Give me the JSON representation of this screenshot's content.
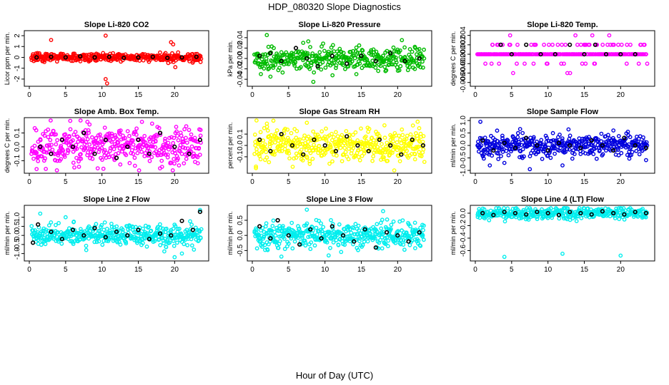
{
  "title": "HDP_080320  Slope Diagnostics",
  "xlabel": "Hour of Day (UTC)",
  "chart_data": [
    {
      "type": "scatter",
      "title": "Slope Li-820 CO2",
      "ylabel": "Licor ppm per min.",
      "color": "#ff0000",
      "xlim": [
        0,
        24
      ],
      "ylim": [
        -2.4,
        2.2
      ],
      "xticks": [
        0,
        5,
        10,
        15,
        20
      ],
      "yticks": [
        -2,
        -1,
        0,
        1,
        2
      ],
      "ytick_labels": [
        "-2",
        "-1",
        "0",
        "1",
        "2"
      ],
      "spread": 0.18,
      "n": 420,
      "outliers": [
        [
          3,
          1.6
        ],
        [
          10.5,
          2.0
        ],
        [
          10.5,
          -2.0
        ],
        [
          10.7,
          -2.4
        ],
        [
          19.5,
          1.4
        ],
        [
          19.8,
          1.2
        ],
        [
          20.1,
          -0.9
        ]
      ],
      "black": [
        [
          1,
          0.0
        ],
        [
          3,
          0.05
        ],
        [
          5,
          0.0
        ],
        [
          7,
          0.1
        ],
        [
          9,
          0.0
        ],
        [
          11,
          0.05
        ],
        [
          13,
          -0.05
        ],
        [
          15,
          0.0
        ],
        [
          17,
          0.05
        ],
        [
          19,
          -0.05
        ],
        [
          21,
          0.0
        ],
        [
          23,
          0.05
        ]
      ]
    },
    {
      "type": "scatter",
      "title": "Slope Li-820 Pressure",
      "ylabel": "kPa per min.",
      "color": "#00bb00",
      "xlim": [
        0,
        24
      ],
      "ylim": [
        -0.048,
        0.048
      ],
      "xticks": [
        0,
        5,
        10,
        15,
        20
      ],
      "yticks": [
        -0.04,
        -0.02,
        0,
        0.02,
        0.04
      ],
      "ytick_labels": [
        "-0.04",
        "-0.02",
        "0.00",
        "0.02",
        "0.04"
      ],
      "spread": 0.011,
      "n": 380,
      "outliers": [
        [
          2,
          0.045
        ],
        [
          2.5,
          -0.035
        ],
        [
          8.4,
          -0.045
        ],
        [
          7,
          0.03
        ]
      ],
      "black": [
        [
          1,
          0.005
        ],
        [
          2.5,
          0.01
        ],
        [
          4,
          -0.005
        ],
        [
          6,
          0.02
        ],
        [
          7.5,
          0.0
        ],
        [
          9,
          -0.015
        ],
        [
          11,
          0.005
        ],
        [
          13,
          -0.01
        ],
        [
          15,
          0.005
        ],
        [
          17,
          -0.005
        ],
        [
          19,
          0.01
        ],
        [
          21,
          -0.005
        ],
        [
          23,
          0.0
        ]
      ]
    },
    {
      "type": "scatter",
      "title": "Slope Li-820 Temp.",
      "ylabel": "degrees C per min.",
      "color": "#ff00ff",
      "xlim": [
        0,
        24
      ],
      "ylim": [
        -0.0062,
        0.0044
      ],
      "xticks": [
        0,
        5,
        10,
        15,
        20
      ],
      "yticks": [
        -0.006,
        -0.004,
        -0.002,
        0,
        0.002,
        0.004
      ],
      "ytick_labels": [
        "-0.006",
        "-0.004",
        "-0.002",
        "0.000",
        "0.002",
        "0.004"
      ],
      "levels": [
        0.004,
        0.002,
        0,
        -0.002,
        -0.004,
        -0.006
      ],
      "n": 300,
      "black": [
        [
          3.5,
          0.002
        ],
        [
          5,
          0.0
        ],
        [
          7,
          0.002
        ],
        [
          9,
          0.0
        ],
        [
          11,
          0.0
        ],
        [
          13,
          0.002
        ],
        [
          15,
          0.0
        ],
        [
          16.5,
          0.002
        ],
        [
          18,
          0.0
        ],
        [
          20,
          0.0
        ],
        [
          22,
          0.0
        ]
      ]
    },
    {
      "type": "scatter",
      "title": "Slope Amb. Box Temp.",
      "ylabel": "degrees C per min.",
      "color": "#ff00ff",
      "xlim": [
        0,
        24
      ],
      "ylim": [
        -0.17,
        0.19
      ],
      "xticks": [
        0,
        5,
        10,
        15,
        20
      ],
      "yticks": [
        -0.1,
        0,
        0.1
      ],
      "ytick_labels": [
        "-0.1",
        "0.0",
        "0.1"
      ],
      "spread": 0.065,
      "n": 420,
      "outliers": [
        [
          1,
          -0.16
        ],
        [
          8,
          0.18
        ],
        [
          15.5,
          0.18
        ]
      ],
      "black": [
        [
          1.5,
          0.0
        ],
        [
          3,
          -0.05
        ],
        [
          4.5,
          0.05
        ],
        [
          6,
          0.0
        ],
        [
          7.5,
          0.1
        ],
        [
          9,
          -0.05
        ],
        [
          10.5,
          0.05
        ],
        [
          12,
          -0.08
        ],
        [
          13.5,
          0.0
        ],
        [
          15,
          0.05
        ],
        [
          16.5,
          -0.05
        ],
        [
          18,
          0.1
        ],
        [
          20,
          0.0
        ],
        [
          22,
          -0.05
        ],
        [
          23.5,
          0.05
        ]
      ]
    },
    {
      "type": "scatter",
      "title": "Slope Gas Stream RH",
      "ylabel": "percent per min.",
      "color": "#ffff00",
      "xlim": [
        0,
        24
      ],
      "ylim": [
        -0.22,
        0.22
      ],
      "xticks": [
        0,
        5,
        10,
        15,
        20
      ],
      "yticks": [
        -0.1,
        0,
        0.1
      ],
      "ytick_labels": [
        "-0.1",
        "0.0",
        "0.1"
      ],
      "spread": 0.075,
      "n": 440,
      "outliers": [
        [
          0.5,
          -0.2
        ],
        [
          7.5,
          0.2
        ]
      ],
      "black": [
        [
          1,
          0.05
        ],
        [
          2.5,
          -0.05
        ],
        [
          4,
          0.1
        ],
        [
          5.5,
          0.0
        ],
        [
          7,
          -0.08
        ],
        [
          8.5,
          0.05
        ],
        [
          10,
          0.0
        ],
        [
          11.5,
          -0.05
        ],
        [
          13,
          0.08
        ],
        [
          14.5,
          0.0
        ],
        [
          16,
          -0.05
        ],
        [
          17.5,
          0.05
        ],
        [
          19,
          0.0
        ],
        [
          20.5,
          -0.08
        ],
        [
          22,
          0.05
        ],
        [
          23.5,
          0.0
        ]
      ]
    },
    {
      "type": "scatter",
      "title": "Slope Sample Flow",
      "ylabel": "ml/min per min.",
      "color": "#0000dd",
      "xlim": [
        0,
        24
      ],
      "ylim": [
        -1.0,
        1.0
      ],
      "xticks": [
        0,
        5,
        10,
        15,
        20
      ],
      "yticks": [
        -1,
        -0.5,
        0,
        0.5,
        1
      ],
      "ytick_labels": [
        "-1.0",
        "-0.5",
        "0.0",
        "0.5",
        "1.0"
      ],
      "spread": 0.22,
      "n": 420,
      "outliers": [
        [
          0.7,
          0.95
        ],
        [
          2,
          -0.8
        ],
        [
          4,
          -0.7
        ],
        [
          7.5,
          -0.95
        ],
        [
          12,
          -0.8
        ],
        [
          19,
          0.6
        ],
        [
          21,
          0.55
        ]
      ],
      "black": [
        [
          1,
          0.2
        ],
        [
          2.5,
          -0.2
        ],
        [
          4,
          0.1
        ],
        [
          5.5,
          -0.1
        ],
        [
          7,
          0.3
        ],
        [
          8.5,
          0.0
        ],
        [
          10,
          -0.2
        ],
        [
          11.5,
          0.1
        ],
        [
          13,
          0.0
        ],
        [
          14.5,
          -0.1
        ],
        [
          16,
          0.2
        ],
        [
          17.5,
          0.0
        ],
        [
          19,
          -0.2
        ],
        [
          20.5,
          0.3
        ],
        [
          22,
          0.0
        ],
        [
          23.5,
          -0.1
        ]
      ]
    },
    {
      "type": "scatter",
      "title": "Slope Line 2 Flow",
      "ylabel": "ml/min per min.",
      "color": "#00eeee",
      "xlim": [
        0,
        24
      ],
      "ylim": [
        -1.25,
        1.5
      ],
      "xticks": [
        0,
        5,
        10,
        15,
        20
      ],
      "yticks": [
        -1,
        -0.5,
        0,
        0.5,
        1
      ],
      "ytick_labels": [
        "-1.0",
        "-0.5",
        "0.0",
        "0.5",
        "1.0"
      ],
      "spread": 0.28,
      "n": 420,
      "outliers": [
        [
          1.5,
          1.2
        ],
        [
          5,
          1.0
        ],
        [
          20,
          -1.2
        ],
        [
          21,
          -1.0
        ],
        [
          23.5,
          1.4
        ]
      ],
      "black": [
        [
          0.5,
          -0.4
        ],
        [
          1.2,
          0.6
        ],
        [
          3,
          0.2
        ],
        [
          4.5,
          -0.2
        ],
        [
          6,
          0.3
        ],
        [
          7.5,
          0.0
        ],
        [
          9,
          0.4
        ],
        [
          10.5,
          -0.1
        ],
        [
          12,
          0.2
        ],
        [
          13.5,
          0.0
        ],
        [
          15,
          0.3
        ],
        [
          16.5,
          -0.2
        ],
        [
          18,
          0.1
        ],
        [
          19.5,
          0.0
        ],
        [
          21,
          0.8
        ],
        [
          22.5,
          0.3
        ],
        [
          23.5,
          1.3
        ]
      ]
    },
    {
      "type": "scatter",
      "title": "Slope Line 3 Flow",
      "ylabel": "ml/min per min.",
      "color": "#00eeee",
      "xlim": [
        0,
        24
      ],
      "ylim": [
        -0.75,
        0.9
      ],
      "xticks": [
        0,
        5,
        10,
        15,
        20
      ],
      "yticks": [
        -0.5,
        0,
        0.5
      ],
      "ytick_labels": [
        "-0.5",
        "0.0",
        "0.5"
      ],
      "spread": 0.2,
      "n": 430,
      "outliers": [
        [
          4,
          -0.7
        ],
        [
          7.5,
          0.85
        ],
        [
          18,
          0.8
        ]
      ],
      "black": [
        [
          1,
          0.3
        ],
        [
          2.5,
          -0.1
        ],
        [
          3.5,
          0.5
        ],
        [
          5,
          0.0
        ],
        [
          6.5,
          -0.3
        ],
        [
          8,
          0.2
        ],
        [
          9.5,
          -0.1
        ],
        [
          11,
          0.3
        ],
        [
          12.5,
          0.0
        ],
        [
          14,
          -0.2
        ],
        [
          15.5,
          0.2
        ],
        [
          17,
          -0.4
        ],
        [
          18.5,
          0.1
        ],
        [
          20,
          0.0
        ],
        [
          21.5,
          -0.2
        ],
        [
          23,
          0.1
        ]
      ]
    },
    {
      "type": "scatter",
      "title": "Slope Line 4 (LT) Flow",
      "ylabel": "ml/min per min.",
      "color": "#00eeee",
      "xlim": [
        0,
        24
      ],
      "ylim": [
        -0.72,
        0.08
      ],
      "xticks": [
        0,
        5,
        10,
        15,
        20
      ],
      "yticks": [
        -0.6,
        -0.4,
        -0.2,
        0
      ],
      "ytick_labels": [
        "-0.6",
        "-0.4",
        "-0.2",
        "0.0"
      ],
      "spread": 0.05,
      "n": 380,
      "outliers": [
        [
          4,
          -0.7
        ],
        [
          12,
          -0.65
        ],
        [
          20,
          -0.68
        ]
      ],
      "black": [
        [
          1,
          0.0
        ],
        [
          2.5,
          -0.03
        ],
        [
          4,
          0.02
        ],
        [
          5.5,
          0.0
        ],
        [
          7,
          -0.02
        ],
        [
          8.5,
          0.02
        ],
        [
          10,
          0.0
        ],
        [
          11.5,
          -0.03
        ],
        [
          13,
          0.02
        ],
        [
          14.5,
          0.0
        ],
        [
          16,
          -0.02
        ],
        [
          17.5,
          0.03
        ],
        [
          19,
          0.0
        ],
        [
          20.5,
          -0.02
        ],
        [
          22,
          0.02
        ],
        [
          23.5,
          0.0
        ]
      ]
    }
  ]
}
